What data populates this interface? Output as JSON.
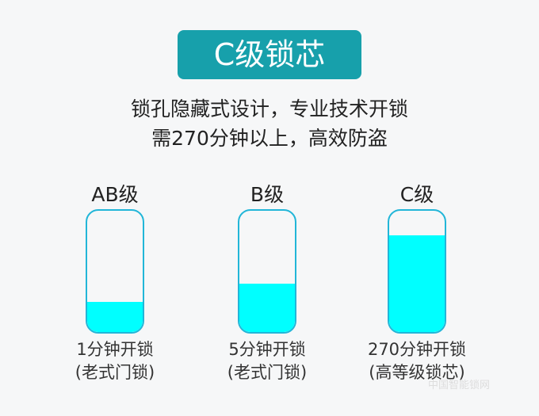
{
  "title": "C级锁芯",
  "subtitle": [
    "锁孔隐藏式设计，专业技术开锁",
    "需270分钟以上，高效防盗"
  ],
  "accent": "#17a0ab",
  "fill_color": "#00ffff",
  "levels": [
    {
      "label": "AB级",
      "fill_percent": 25,
      "time": "1分钟开锁",
      "note": "(老式门锁)"
    },
    {
      "label": "B级",
      "fill_percent": 40,
      "time": "5分钟开锁",
      "note": "(老式门锁)"
    },
    {
      "label": "C级",
      "fill_percent": 80,
      "time": "270分钟开锁",
      "note": "(高等级锁芯)"
    }
  ],
  "watermark": "中国智能锁网"
}
